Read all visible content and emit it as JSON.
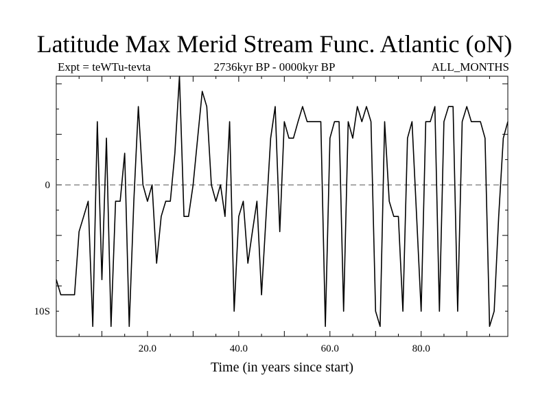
{
  "header": {
    "title": "Latitude Max Merid Stream Func. Atlantic (oN)",
    "expt": "Expt = teWTu-tevta",
    "period": "2736kyr BP - 0000kyr BP",
    "months": "ALL_MONTHS"
  },
  "chart_data": {
    "type": "line",
    "title": "Latitude Max Merid Stream Func. Atlantic (oN)",
    "xlabel": "Time (in years since start)",
    "ylabel": "",
    "xlim": [
      0,
      99
    ],
    "ylim": [
      -12,
      8.6
    ],
    "grid": false,
    "x_ticks": [
      {
        "value": 20,
        "label": "20.0"
      },
      {
        "value": 40,
        "label": "40.0"
      },
      {
        "value": 60,
        "label": "60.0"
      },
      {
        "value": 80,
        "label": "80.0"
      }
    ],
    "y_ticks": [
      {
        "value": 0,
        "label": "0"
      },
      {
        "value": -10,
        "label": "10S"
      }
    ],
    "reference_line": {
      "value": 0,
      "style": "dashed"
    },
    "series": [
      {
        "x": [
          0,
          1,
          2,
          3,
          4,
          5,
          6,
          7,
          8,
          9,
          10,
          11,
          12,
          13,
          14,
          15,
          16,
          17,
          18,
          19,
          20,
          21,
          22,
          23,
          24,
          25,
          26,
          27,
          28,
          29,
          30,
          31,
          32,
          33,
          34,
          35,
          36,
          37,
          38,
          39,
          40,
          41,
          42,
          43,
          44,
          45,
          46,
          47,
          48,
          49,
          50,
          51,
          52,
          53,
          54,
          55,
          56,
          57,
          58,
          59,
          60,
          61,
          62,
          63,
          64,
          65,
          66,
          67,
          68,
          69,
          70,
          71,
          72,
          73,
          74,
          75,
          76,
          77,
          78,
          79,
          80,
          81,
          82,
          83,
          84,
          85,
          86,
          87,
          88,
          89,
          90,
          91,
          92,
          93,
          94,
          95,
          96,
          97,
          98,
          99
        ],
        "y": [
          -7.5,
          -8.7,
          -8.7,
          -8.7,
          -8.7,
          -3.7,
          -2.5,
          -1.3,
          -11.2,
          5,
          -7.5,
          3.7,
          -11.2,
          -1.3,
          -1.3,
          2.5,
          -11.2,
          -1.3,
          6.2,
          0,
          -1.3,
          0,
          -6.2,
          -2.5,
          -1.3,
          -1.3,
          2.5,
          8.6,
          -2.5,
          -2.5,
          0,
          3.7,
          7.4,
          6.2,
          0,
          -1.3,
          0,
          -2.5,
          5,
          -10,
          -2.5,
          -1.3,
          -6.2,
          -3.7,
          -1.3,
          -8.7,
          -2.5,
          3.7,
          6.2,
          -3.7,
          5,
          3.7,
          3.7,
          5,
          6.2,
          5,
          5,
          5,
          5,
          -11.2,
          3.7,
          5,
          5,
          -10,
          5,
          3.7,
          6.2,
          5,
          6.2,
          5,
          -10,
          -11.2,
          5,
          -1.3,
          -2.5,
          -2.5,
          -10,
          3.7,
          5,
          -2.5,
          -10,
          5,
          5,
          6.2,
          -10,
          5,
          6.2,
          6.2,
          -10,
          5,
          6.2,
          5,
          5,
          5,
          3.7,
          -11.2,
          -10,
          -2.5,
          3.7,
          5
        ]
      }
    ]
  }
}
